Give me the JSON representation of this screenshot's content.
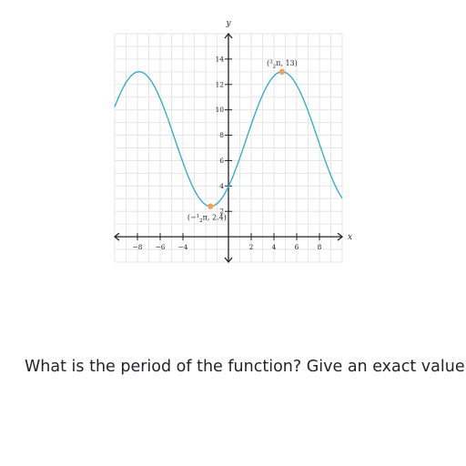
{
  "question": {
    "text": "What is the period of the function? Give an exact value."
  },
  "chart_data": {
    "type": "line",
    "title": "",
    "xlabel": "x",
    "ylabel": "y",
    "xlim": [
      -10,
      10
    ],
    "ylim": [
      -2,
      16
    ],
    "grid": true,
    "x_ticks": [
      -8,
      -6,
      -4,
      2,
      4,
      6,
      8
    ],
    "x_tick_labels": [
      "−8",
      "−6",
      "−4",
      "2",
      "4",
      "6",
      "8"
    ],
    "y_ticks": [
      2,
      4,
      6,
      8,
      10,
      12,
      14
    ],
    "y_tick_labels": [
      "2",
      "4",
      "6",
      "8",
      "10",
      "12",
      "14"
    ],
    "series": [
      {
        "color": "#29abca",
        "function": "sinusoid",
        "max_point": {
          "x": 4.712,
          "y": 13
        },
        "min_point": {
          "x": -1.571,
          "y": 2.4
        }
      }
    ],
    "marked_points": [
      {
        "x": -1.571,
        "y": 2.4,
        "label": "(−1/2π, 2.4)",
        "label_sign": "(−",
        "label_num": "1",
        "label_den": "2",
        "label_rest": "π, 2.4)",
        "color": "#f5a05a"
      },
      {
        "x": 4.712,
        "y": 13,
        "label": "(3/2π, 13)",
        "label_sign": "(",
        "label_num": "3",
        "label_den": "2",
        "label_rest": "π, 13)",
        "color": "#f5a05a"
      }
    ]
  }
}
